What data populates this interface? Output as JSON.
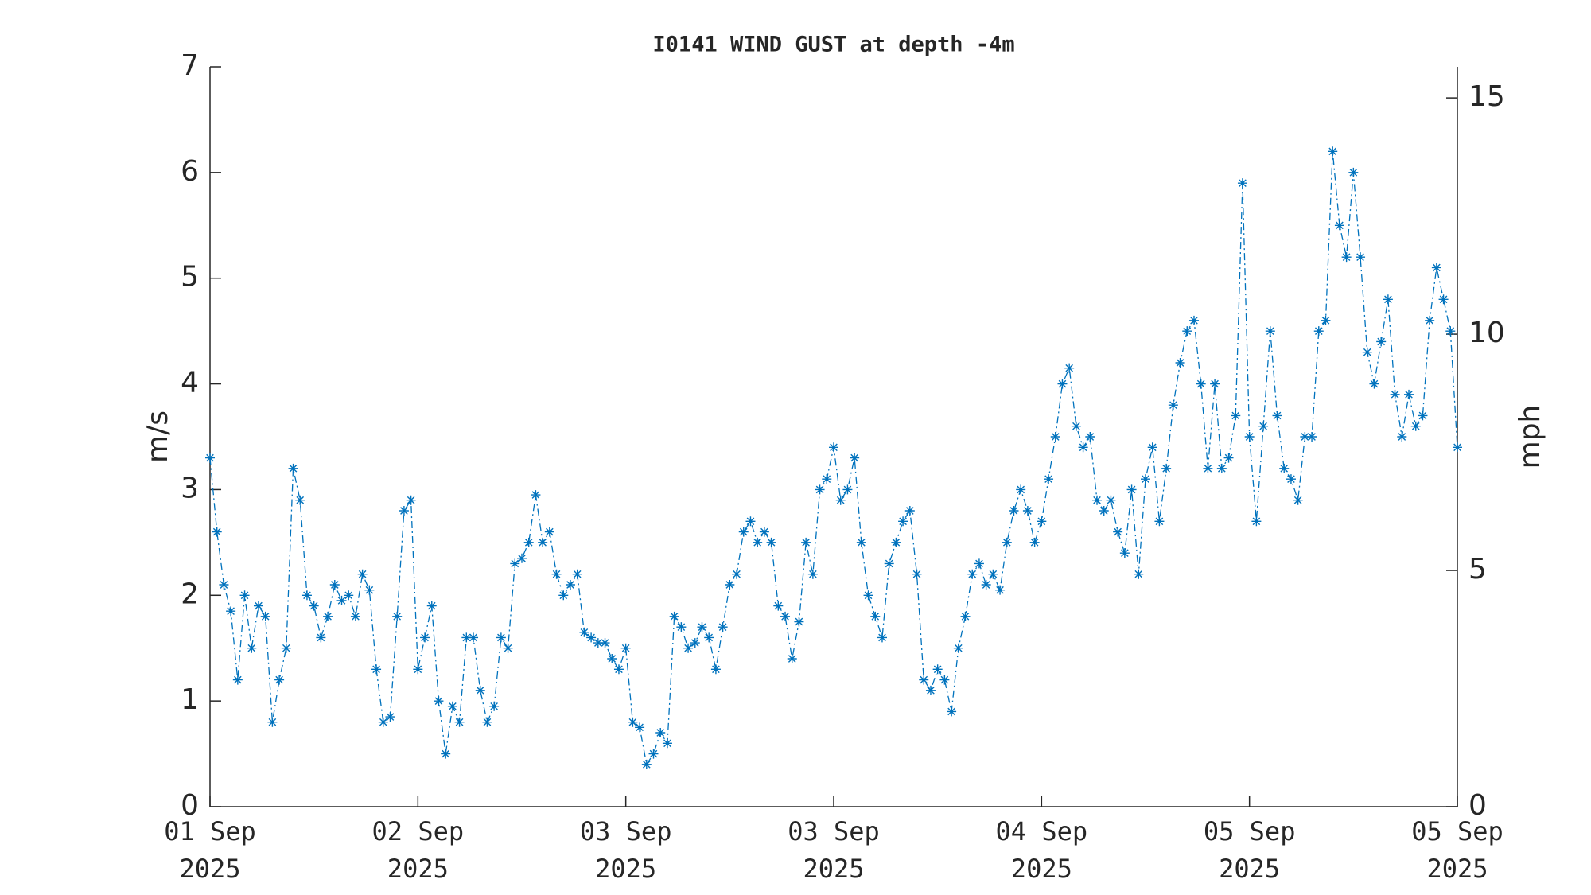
{
  "chart_data": {
    "type": "line",
    "title": "I0141 WIND GUST at depth -4m",
    "ylabel": "m/s",
    "y2label": "mph",
    "xlim": [
      0,
      144
    ],
    "xticks": [
      {
        "value": 0,
        "label": [
          "01 Sep",
          "2025"
        ]
      },
      {
        "value": 24,
        "label": [
          "02 Sep",
          "2025"
        ]
      },
      {
        "value": 48,
        "label": [
          "03 Sep",
          "2025"
        ]
      },
      {
        "value": 72,
        "label": [
          "03 Sep",
          "2025"
        ]
      },
      {
        "value": 96,
        "label": [
          "04 Sep",
          "2025"
        ]
      },
      {
        "value": 120,
        "label": [
          "05 Sep",
          "2025"
        ]
      },
      {
        "value": 144,
        "label": [
          "05 Sep",
          "2025"
        ]
      }
    ],
    "ylim": [
      0,
      7
    ],
    "yticks": [
      0,
      1,
      2,
      3,
      4,
      5,
      6,
      7
    ],
    "y2lim": [
      0,
      15.6586
    ],
    "y2ticks": [
      0,
      5,
      10,
      15
    ],
    "grid": false,
    "series": [
      {
        "name": "WIND GUST",
        "color": "#0072bd",
        "x": [
          0,
          0.8,
          1.6,
          2.4,
          3.2,
          4,
          4.8,
          5.6,
          6.4,
          7.2,
          8,
          8.8,
          9.6,
          10.4,
          11.2,
          12,
          12.8,
          13.6,
          14.4,
          15.2,
          16,
          16.8,
          17.6,
          18.4,
          19.2,
          20,
          20.8,
          21.6,
          22.4,
          23.2,
          24,
          24.8,
          25.6,
          26.4,
          27.2,
          28,
          28.8,
          29.6,
          30.4,
          31.2,
          32,
          32.8,
          33.6,
          34.4,
          35.2,
          36,
          36.8,
          37.6,
          38.4,
          39.2,
          40,
          40.8,
          41.6,
          42.4,
          43.2,
          44,
          44.8,
          45.6,
          46.4,
          47.2,
          48,
          48.8,
          49.6,
          50.4,
          51.2,
          52,
          52.8,
          53.6,
          54.4,
          55.2,
          56,
          56.8,
          57.6,
          58.4,
          59.2,
          60,
          60.8,
          61.6,
          62.4,
          63.2,
          64,
          64.8,
          65.6,
          66.4,
          67.2,
          68,
          68.8,
          69.6,
          70.4,
          71.2,
          72,
          72.8,
          73.6,
          74.4,
          75.2,
          76,
          76.8,
          77.6,
          78.4,
          79.2,
          80,
          80.8,
          81.6,
          82.4,
          83.2,
          84,
          84.8,
          85.6,
          86.4,
          87.2,
          88,
          88.8,
          89.6,
          90.4,
          91.2,
          92,
          92.8,
          93.6,
          94.4,
          95.2,
          96,
          96.8,
          97.6,
          98.4,
          99.2,
          100,
          100.8,
          101.6,
          102.4,
          103.2,
          104,
          104.8,
          105.6,
          106.4,
          107.2,
          108,
          108.8,
          109.6,
          110.4,
          111.2,
          112,
          112.8,
          113.6,
          114.4,
          115.2,
          116,
          116.8,
          117.6,
          118.4,
          119.2,
          120,
          120.8,
          121.6,
          122.4,
          123.2,
          124,
          124.8,
          125.6,
          126.4,
          127.2,
          128,
          128.8,
          129.6,
          130.4,
          131.2,
          132,
          132.8,
          133.6,
          134.4,
          135.2,
          136,
          136.8,
          137.6,
          138.4,
          139.2,
          140,
          140.8,
          141.6,
          142.4,
          143.2,
          144
        ],
        "values": [
          3.3,
          2.6,
          2.1,
          1.85,
          1.2,
          2.0,
          1.5,
          1.9,
          1.8,
          0.8,
          1.2,
          1.5,
          3.2,
          2.9,
          2.0,
          1.9,
          1.6,
          1.8,
          2.1,
          1.95,
          2.0,
          1.8,
          2.2,
          2.05,
          1.3,
          0.8,
          0.85,
          1.8,
          2.8,
          2.9,
          1.3,
          1.6,
          1.9,
          1.0,
          0.5,
          0.95,
          0.8,
          1.6,
          1.6,
          1.1,
          0.8,
          0.95,
          1.6,
          1.5,
          2.3,
          2.35,
          2.5,
          2.95,
          2.5,
          2.6,
          2.2,
          2.0,
          2.1,
          2.2,
          1.65,
          1.6,
          1.55,
          1.55,
          1.4,
          1.3,
          1.5,
          0.8,
          0.75,
          0.4,
          0.5,
          0.7,
          0.6,
          1.8,
          1.7,
          1.5,
          1.55,
          1.7,
          1.6,
          1.3,
          1.7,
          2.1,
          2.2,
          2.6,
          2.7,
          2.5,
          2.6,
          2.5,
          1.9,
          1.8,
          1.4,
          1.75,
          2.5,
          2.2,
          3.0,
          3.1,
          3.4,
          2.9,
          3.0,
          3.3,
          2.5,
          2.0,
          1.8,
          1.6,
          2.3,
          2.5,
          2.7,
          2.8,
          2.2,
          1.2,
          1.1,
          1.3,
          1.2,
          0.9,
          1.5,
          1.8,
          2.2,
          2.3,
          2.1,
          2.2,
          2.05,
          2.5,
          2.8,
          3.0,
          2.8,
          2.5,
          2.7,
          3.1,
          3.5,
          4.0,
          4.15,
          3.6,
          3.4,
          3.5,
          2.9,
          2.8,
          2.9,
          2.6,
          2.4,
          3.0,
          2.2,
          3.1,
          3.4,
          2.7,
          3.2,
          3.8,
          4.2,
          4.5,
          4.6,
          4.0,
          3.2,
          4.0,
          3.2,
          3.3,
          3.7,
          5.9,
          3.5,
          2.7,
          3.6,
          4.5,
          3.7,
          3.2,
          3.1,
          2.9,
          3.5,
          3.5,
          4.5,
          4.6,
          6.2,
          5.5,
          5.2,
          6.0,
          5.2,
          4.3,
          4.0,
          4.4,
          4.8,
          3.9,
          3.5,
          3.9,
          3.6,
          3.7,
          4.6,
          5.1,
          4.8,
          4.5,
          3.4
        ]
      }
    ]
  }
}
